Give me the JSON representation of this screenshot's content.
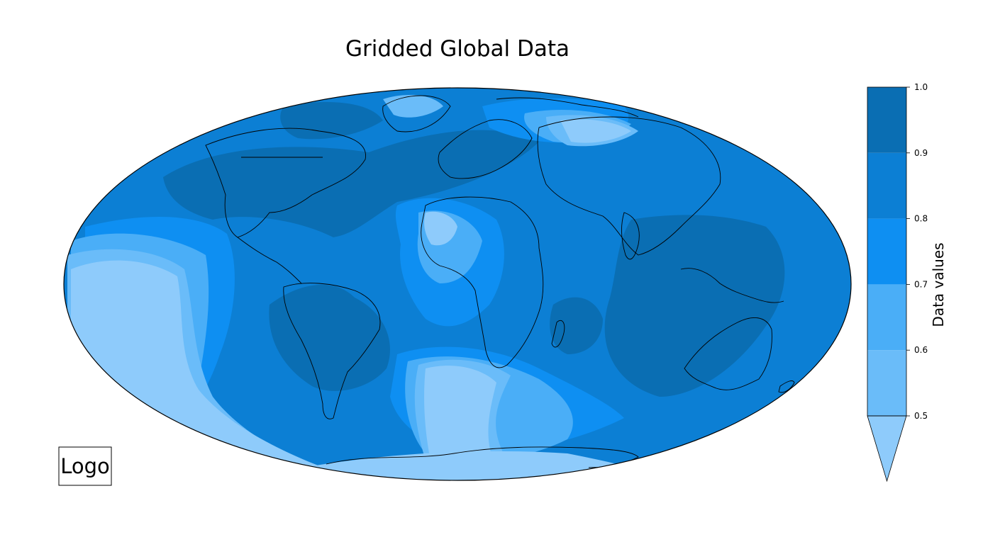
{
  "title": "Gridded Global Data",
  "logo": {
    "text": "Logo"
  },
  "colorbar": {
    "label": "Data values",
    "ticks": [
      "0.5",
      "0.6",
      "0.7",
      "0.8",
      "0.9",
      "1.0"
    ],
    "levels": [
      0.5,
      0.6,
      0.7,
      0.8,
      0.9,
      1.0
    ],
    "extend": "min",
    "colors": [
      "#8ecbfb",
      "#6abcf9",
      "#4aaef7",
      "#0e8ff2",
      "#0c7fd4",
      "#0a6eb3"
    ]
  },
  "map": {
    "projection": "mollweide",
    "ocean_base_color": "#0c7fd4",
    "coastline_color": "#000000",
    "features": [
      "coastlines",
      "country borders"
    ]
  }
}
